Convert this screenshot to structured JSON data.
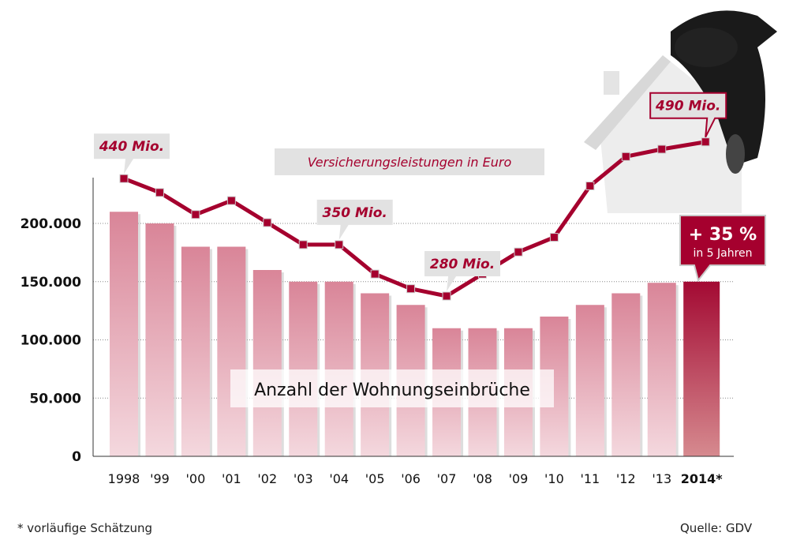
{
  "chart_data": {
    "type": "bar+line",
    "categories": [
      "1998",
      "'99",
      "'00",
      "'01",
      "'02",
      "'03",
      "'04",
      "'05",
      "'06",
      "'07",
      "'08",
      "'09",
      "'10",
      "'11",
      "'12",
      "'13",
      "2014*"
    ],
    "bar_series": {
      "name": "Anzahl der Wohnungseinbrüche",
      "values": [
        210000,
        200000,
        180000,
        180000,
        160000,
        150000,
        150000,
        140000,
        130000,
        110000,
        110000,
        110000,
        120000,
        130000,
        140000,
        149000,
        150000
      ]
    },
    "line_series": {
      "name": "Versicherungsleistungen in Euro",
      "unit": "Mio.",
      "values": [
        440,
        421,
        391,
        410,
        380,
        350,
        350,
        310,
        290,
        280,
        310,
        340,
        360,
        430,
        470,
        480,
        490
      ]
    },
    "ylim": [
      0,
      240000
    ],
    "yticks": [
      0,
      50000,
      100000,
      150000,
      200000
    ],
    "ytick_labels": [
      "0",
      "50.000",
      "100.000",
      "150.000",
      "200.000"
    ],
    "annotations": [
      {
        "index": 0,
        "text": "440 Mio."
      },
      {
        "index": 6,
        "text": "350 Mio."
      },
      {
        "index": 9,
        "text": "280 Mio."
      },
      {
        "index": 16,
        "text": "490 Mio."
      }
    ],
    "highlight": {
      "big": "+ 35 %",
      "small": "in 5 Jahren"
    },
    "grid": true
  },
  "footnote": "* vorläufige Schätzung",
  "source": "Quelle: GDV",
  "colors": {
    "accent": "#a5002e",
    "bar_top": "#d98598",
    "bar_bottom": "#f2d4da",
    "highlight_top": "#a30a33",
    "highlight_bottom": "#d68a8f"
  }
}
